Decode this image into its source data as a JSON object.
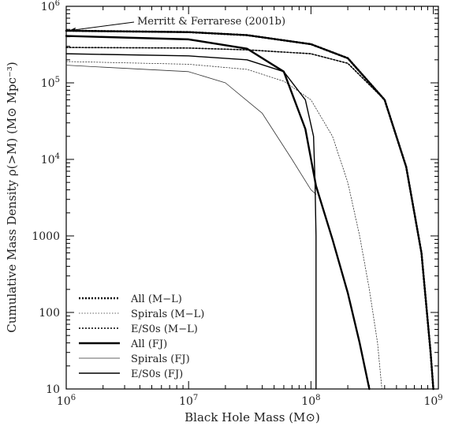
{
  "chart_data": {
    "type": "line",
    "xscale": "log",
    "yscale": "log",
    "xlim": [
      1000000,
      1100000000
    ],
    "ylim": [
      10,
      1000000
    ],
    "xlabel": "Black Hole Mass (M⊙)",
    "ylabel": "Cumulative Mass Density ρ(>M) (M⊙ Mpc⁻³)",
    "x_ticks": [
      {
        "value": 1000000,
        "base": "10",
        "exp": "6"
      },
      {
        "value": 10000000,
        "base": "10",
        "exp": "7"
      },
      {
        "value": 100000000,
        "base": "10",
        "exp": "8"
      },
      {
        "value": 1000000000,
        "base": "10",
        "exp": "9"
      }
    ],
    "y_ticks": [
      {
        "value": 10,
        "base": "10",
        "exp": ""
      },
      {
        "value": 100,
        "base": "100",
        "exp": ""
      },
      {
        "value": 1000,
        "base": "1000",
        "exp": ""
      },
      {
        "value": 10000,
        "base": "10",
        "exp": "4"
      },
      {
        "value": 100000,
        "base": "10",
        "exp": "5"
      },
      {
        "value": 1000000,
        "base": "10",
        "exp": "6"
      }
    ],
    "annotation": {
      "text": "Merritt & Ferrarese (2001b)",
      "arrow_to": {
        "x": 1000000,
        "y": 480000
      }
    },
    "legend_position": "bottom-left",
    "series": [
      {
        "name": "All (M−L)",
        "style": "dotted-heavy",
        "points": [
          [
            1000000,
            480000
          ],
          [
            10000000,
            460000
          ],
          [
            30000000,
            420000
          ],
          [
            100000000,
            320000
          ],
          [
            200000000,
            210000
          ],
          [
            400000000,
            60000
          ],
          [
            600000000,
            8000
          ],
          [
            800000000,
            600
          ],
          [
            950000000,
            30
          ],
          [
            1000000000,
            10
          ]
        ]
      },
      {
        "name": "Spirals (M−L)",
        "style": "dotted-light",
        "points": [
          [
            1000000,
            190000
          ],
          [
            10000000,
            175000
          ],
          [
            30000000,
            150000
          ],
          [
            60000000,
            105000
          ],
          [
            100000000,
            60000
          ],
          [
            150000000,
            20000
          ],
          [
            200000000,
            5000
          ],
          [
            250000000,
            1000
          ],
          [
            300000000,
            200
          ],
          [
            350000000,
            40
          ],
          [
            380000000,
            10
          ]
        ]
      },
      {
        "name": "E/S0s (M−L)",
        "style": "dotted-medium",
        "points": [
          [
            1000000,
            290000
          ],
          [
            10000000,
            285000
          ],
          [
            30000000,
            270000
          ],
          [
            100000000,
            240000
          ],
          [
            200000000,
            180000
          ],
          [
            400000000,
            60000
          ],
          [
            600000000,
            8000
          ],
          [
            800000000,
            600
          ],
          [
            950000000,
            30
          ],
          [
            1000000000,
            10
          ]
        ]
      },
      {
        "name": "All (FJ)",
        "style": "solid-heavy",
        "points": [
          [
            1000000,
            410000
          ],
          [
            10000000,
            370000
          ],
          [
            30000000,
            280000
          ],
          [
            60000000,
            140000
          ],
          [
            90000000,
            25000
          ],
          [
            110000000,
            4500
          ],
          [
            150000000,
            900
          ],
          [
            200000000,
            180
          ],
          [
            250000000,
            40
          ],
          [
            300000000,
            10
          ]
        ]
      },
      {
        "name": "Spirals (FJ)",
        "style": "solid-light",
        "points": [
          [
            1000000,
            170000
          ],
          [
            10000000,
            140000
          ],
          [
            20000000,
            100000
          ],
          [
            40000000,
            40000
          ],
          [
            70000000,
            10000
          ],
          [
            100000000,
            4000
          ],
          [
            110000000,
            3500
          ]
        ]
      },
      {
        "name": "E/S0s (FJ)",
        "style": "solid-medium",
        "points": [
          [
            1000000,
            240000
          ],
          [
            10000000,
            225000
          ],
          [
            30000000,
            200000
          ],
          [
            60000000,
            140000
          ],
          [
            90000000,
            60000
          ],
          [
            105000000,
            20000
          ],
          [
            108000000,
            5000
          ],
          [
            110000000,
            1000
          ],
          [
            110000000,
            10
          ]
        ]
      }
    ],
    "styles": {
      "dotted-heavy": {
        "width": 2.6,
        "dash": "2,2",
        "color": "#000000"
      },
      "dotted-light": {
        "width": 0.8,
        "dash": "1.5,2",
        "color": "#333333"
      },
      "dotted-medium": {
        "width": 1.6,
        "dash": "2,2",
        "color": "#000000"
      },
      "solid-heavy": {
        "width": 2.4,
        "dash": "",
        "color": "#000000"
      },
      "solid-light": {
        "width": 0.8,
        "dash": "",
        "color": "#333333"
      },
      "solid-medium": {
        "width": 1.4,
        "dash": "",
        "color": "#000000"
      }
    }
  }
}
